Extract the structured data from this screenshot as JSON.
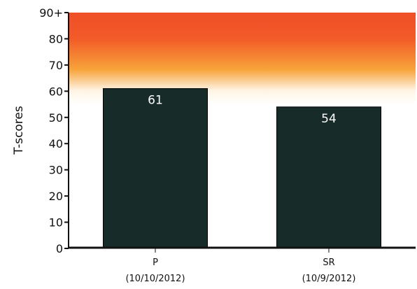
{
  "chart_data": {
    "type": "bar",
    "ylabel": "T-scores",
    "ylim": [
      0,
      90
    ],
    "ytick_labels": [
      "0",
      "10",
      "20",
      "30",
      "40",
      "50",
      "60",
      "70",
      "80",
      "90+"
    ],
    "categories": [
      {
        "line1": "P",
        "line2": "(10/10/2012)"
      },
      {
        "line1": "SR",
        "line2": "(10/9/2012)"
      }
    ],
    "values": [
      61,
      54
    ],
    "data_labels": [
      "61",
      "54"
    ],
    "bar_color": "#172b28",
    "background_gradient": {
      "from_value": 55,
      "to_value": 90,
      "colors": [
        "#ffffff",
        "#f7a33a",
        "#f25a28",
        "#ef4f27"
      ]
    },
    "grid": false
  }
}
